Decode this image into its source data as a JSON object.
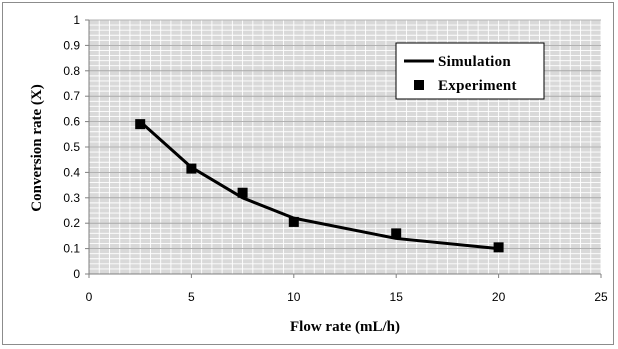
{
  "chart_data": {
    "type": "line",
    "title": "",
    "xlabel": "Flow rate (mL/h)",
    "ylabel": "Conversion rate (X)",
    "xlim": [
      0,
      25
    ],
    "ylim": [
      0,
      1
    ],
    "x_ticks": [
      "0",
      "5",
      "10",
      "15",
      "20",
      "25"
    ],
    "y_ticks": [
      "0",
      "0.1",
      "0.2",
      "0.3",
      "0.4",
      "0.5",
      "0.6",
      "0.7",
      "0.8",
      "0.9",
      "1"
    ],
    "grid": true,
    "legend_position": "top-right",
    "series": [
      {
        "name": "Simulation",
        "style": "line",
        "color": "#000000",
        "x": [
          2.5,
          5,
          7.5,
          10,
          15,
          20
        ],
        "y": [
          0.6,
          0.42,
          0.3,
          0.22,
          0.14,
          0.1
        ]
      },
      {
        "name": "Experiment",
        "style": "square-marker",
        "color": "#000000",
        "x": [
          2.5,
          5,
          7.5,
          10,
          15,
          20
        ],
        "y": [
          0.59,
          0.415,
          0.32,
          0.205,
          0.16,
          0.105
        ]
      }
    ],
    "plot_background": "#d9d9d9",
    "grid_color": "#ffffff"
  }
}
